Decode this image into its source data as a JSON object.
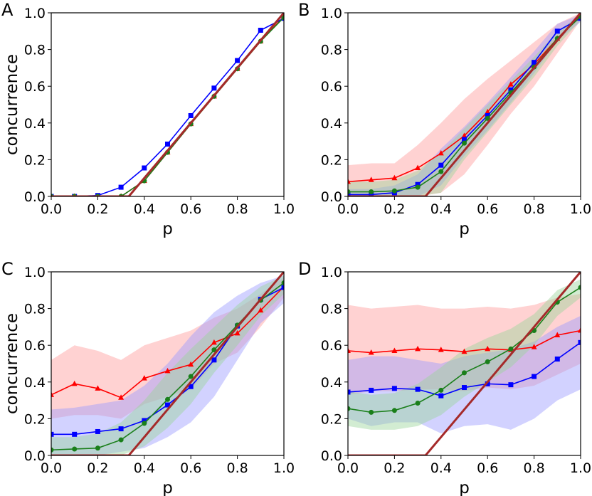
{
  "colors": {
    "red": "#ff0000",
    "blue": "#0000ff",
    "green": "#1a7f1a",
    "brown": "#a52a2a",
    "red_band": "#ff9b9b",
    "blue_band": "#9b9bff",
    "green_band": "#9bd59b"
  },
  "chart_data": [
    {
      "panel": "A",
      "type": "line",
      "xlabel": "p",
      "ylabel": "concurrence",
      "xlim": [
        0,
        1
      ],
      "ylim": [
        0,
        1
      ],
      "xticks": [
        "0.0",
        "0.2",
        "0.4",
        "0.6",
        "0.8",
        "1.0"
      ],
      "yticks": [
        "0.0",
        "0.2",
        "0.4",
        "0.6",
        "0.8",
        "1.0"
      ],
      "grid": false,
      "x": [
        0,
        0.1,
        0.2,
        0.3,
        0.4,
        0.5,
        0.6,
        0.7,
        0.8,
        0.9,
        1.0
      ],
      "series": [
        {
          "color": "red",
          "marker": "triangle",
          "values": [
            0,
            0,
            0,
            0,
            0.085,
            0.24,
            0.395,
            0.545,
            0.695,
            0.845,
            0.98
          ]
        },
        {
          "color": "blue",
          "marker": "square",
          "values": [
            0,
            0,
            0.005,
            0.05,
            0.155,
            0.285,
            0.44,
            0.59,
            0.74,
            0.905,
            0.97
          ]
        },
        {
          "color": "green",
          "marker": "circle",
          "values": [
            0,
            0,
            0,
            0,
            0.085,
            0.24,
            0.395,
            0.545,
            0.695,
            0.845,
            0.975
          ]
        }
      ],
      "reference_line": {
        "color": "brown",
        "x": [
          0,
          0.3333,
          1.0
        ],
        "values": [
          0,
          0,
          1.0
        ]
      }
    },
    {
      "panel": "B",
      "type": "line",
      "xlabel": "p",
      "ylabel": "",
      "xlim": [
        0,
        1
      ],
      "ylim": [
        0,
        1
      ],
      "xticks": [
        "0.0",
        "0.2",
        "0.4",
        "0.6",
        "0.8",
        "1.0"
      ],
      "yticks": [
        "0.0",
        "0.2",
        "0.4",
        "0.6",
        "0.8",
        "1.0"
      ],
      "grid": false,
      "x": [
        0,
        0.1,
        0.2,
        0.3,
        0.4,
        0.5,
        0.6,
        0.7,
        0.8,
        0.9,
        1.0
      ],
      "series": [
        {
          "color": "red",
          "marker": "triangle",
          "values": [
            0.08,
            0.09,
            0.1,
            0.155,
            0.235,
            0.33,
            0.46,
            0.61,
            0.72,
            0.86,
            0.99
          ],
          "band_low": [
            0,
            0,
            0,
            0,
            0.02,
            0.12,
            0.28,
            0.45,
            0.6,
            0.78,
            0.96
          ],
          "band_high": [
            0.17,
            0.18,
            0.18,
            0.28,
            0.4,
            0.53,
            0.64,
            0.74,
            0.84,
            0.94,
            1.0
          ]
        },
        {
          "color": "blue",
          "marker": "square",
          "values": [
            0.01,
            0.01,
            0.02,
            0.065,
            0.17,
            0.31,
            0.44,
            0.58,
            0.73,
            0.9,
            0.97
          ],
          "band_low": [
            0,
            0,
            0,
            0,
            0.06,
            0.22,
            0.36,
            0.51,
            0.67,
            0.85,
            0.95
          ],
          "band_high": [
            0.04,
            0.04,
            0.06,
            0.12,
            0.26,
            0.38,
            0.51,
            0.65,
            0.79,
            0.94,
            0.99
          ]
        },
        {
          "color": "green",
          "marker": "circle",
          "values": [
            0.025,
            0.025,
            0.03,
            0.05,
            0.135,
            0.29,
            0.425,
            0.565,
            0.705,
            0.86,
            0.98
          ],
          "band_low": [
            0,
            0,
            0,
            0,
            0.02,
            0.2,
            0.35,
            0.5,
            0.65,
            0.82,
            0.96
          ],
          "band_high": [
            0.08,
            0.08,
            0.09,
            0.14,
            0.24,
            0.37,
            0.5,
            0.63,
            0.76,
            0.9,
            0.99
          ]
        }
      ],
      "reference_line": {
        "color": "brown",
        "x": [
          0,
          0.3333,
          1.0
        ],
        "values": [
          0,
          0,
          1.0
        ]
      }
    },
    {
      "panel": "C",
      "type": "line",
      "xlabel": "p",
      "ylabel": "concurrence",
      "xlim": [
        0,
        1
      ],
      "ylim": [
        0,
        1
      ],
      "xticks": [
        "0.0",
        "0.2",
        "0.4",
        "0.6",
        "0.8",
        "1.0"
      ],
      "yticks": [
        "0.0",
        "0.2",
        "0.4",
        "0.6",
        "0.8",
        "1.0"
      ],
      "grid": false,
      "x": [
        0,
        0.1,
        0.2,
        0.3,
        0.4,
        0.5,
        0.6,
        0.7,
        0.8,
        0.9,
        1.0
      ],
      "series": [
        {
          "color": "red",
          "marker": "triangle",
          "values": [
            0.33,
            0.39,
            0.365,
            0.315,
            0.42,
            0.46,
            0.495,
            0.615,
            0.665,
            0.79,
            0.92
          ],
          "band_low": [
            0.2,
            0.22,
            0.22,
            0.2,
            0.28,
            0.32,
            0.36,
            0.5,
            0.56,
            0.7,
            0.86
          ],
          "band_high": [
            0.52,
            0.6,
            0.57,
            0.52,
            0.6,
            0.64,
            0.68,
            0.75,
            0.8,
            0.88,
            0.97
          ]
        },
        {
          "color": "blue",
          "marker": "square",
          "values": [
            0.115,
            0.115,
            0.13,
            0.145,
            0.19,
            0.275,
            0.375,
            0.52,
            0.705,
            0.85,
            0.915
          ],
          "band_low": [
            0,
            0,
            0,
            0.02,
            0.04,
            0.1,
            0.18,
            0.32,
            0.52,
            0.72,
            0.83
          ],
          "band_high": [
            0.25,
            0.26,
            0.28,
            0.3,
            0.38,
            0.5,
            0.65,
            0.78,
            0.87,
            0.94,
            0.98
          ]
        },
        {
          "color": "green",
          "marker": "circle",
          "values": [
            0.03,
            0.035,
            0.04,
            0.085,
            0.175,
            0.305,
            0.43,
            0.575,
            0.71,
            0.845,
            0.94
          ],
          "band_low": [
            0,
            0,
            0,
            0,
            0.05,
            0.15,
            0.28,
            0.45,
            0.6,
            0.76,
            0.88
          ],
          "band_high": [
            0.1,
            0.1,
            0.12,
            0.18,
            0.3,
            0.45,
            0.58,
            0.7,
            0.82,
            0.92,
            0.98
          ]
        }
      ],
      "reference_line": {
        "color": "brown",
        "x": [
          0,
          0.3333,
          1.0
        ],
        "values": [
          0,
          0,
          1.0
        ]
      }
    },
    {
      "panel": "D",
      "type": "line",
      "xlabel": "p",
      "ylabel": "",
      "xlim": [
        0,
        1
      ],
      "ylim": [
        0,
        1
      ],
      "xticks": [
        "0.0",
        "0.2",
        "0.4",
        "0.6",
        "0.8",
        "1.0"
      ],
      "yticks": [
        "0.0",
        "0.2",
        "0.4",
        "0.6",
        "0.8",
        "1.0"
      ],
      "grid": false,
      "x": [
        0,
        0.1,
        0.2,
        0.3,
        0.4,
        0.5,
        0.6,
        0.7,
        0.8,
        0.9,
        1.0
      ],
      "series": [
        {
          "color": "red",
          "marker": "triangle",
          "values": [
            0.57,
            0.56,
            0.57,
            0.58,
            0.575,
            0.565,
            0.58,
            0.575,
            0.59,
            0.655,
            0.68
          ],
          "band_low": [
            0.33,
            0.35,
            0.35,
            0.36,
            0.36,
            0.35,
            0.37,
            0.36,
            0.38,
            0.44,
            0.5
          ],
          "band_high": [
            0.82,
            0.8,
            0.81,
            0.82,
            0.8,
            0.8,
            0.81,
            0.8,
            0.82,
            0.86,
            0.88
          ]
        },
        {
          "color": "blue",
          "marker": "square",
          "values": [
            0.345,
            0.355,
            0.365,
            0.36,
            0.325,
            0.37,
            0.39,
            0.385,
            0.43,
            0.525,
            0.615
          ],
          "band_low": [
            0.2,
            0.16,
            0.18,
            0.18,
            0.12,
            0.16,
            0.17,
            0.14,
            0.2,
            0.3,
            0.36
          ],
          "band_high": [
            0.52,
            0.54,
            0.54,
            0.52,
            0.5,
            0.54,
            0.56,
            0.58,
            0.62,
            0.7,
            0.76
          ]
        },
        {
          "color": "green",
          "marker": "circle",
          "values": [
            0.255,
            0.235,
            0.245,
            0.285,
            0.355,
            0.45,
            0.51,
            0.58,
            0.68,
            0.835,
            0.915
          ],
          "band_low": [
            0.16,
            0.14,
            0.14,
            0.16,
            0.22,
            0.32,
            0.4,
            0.48,
            0.6,
            0.76,
            0.86
          ],
          "band_high": [
            0.35,
            0.33,
            0.34,
            0.39,
            0.48,
            0.58,
            0.64,
            0.69,
            0.77,
            0.9,
            0.96
          ]
        }
      ],
      "reference_line": {
        "color": "brown",
        "x": [
          0,
          0.3333,
          1.0
        ],
        "values": [
          0,
          0,
          1.0
        ]
      }
    }
  ]
}
